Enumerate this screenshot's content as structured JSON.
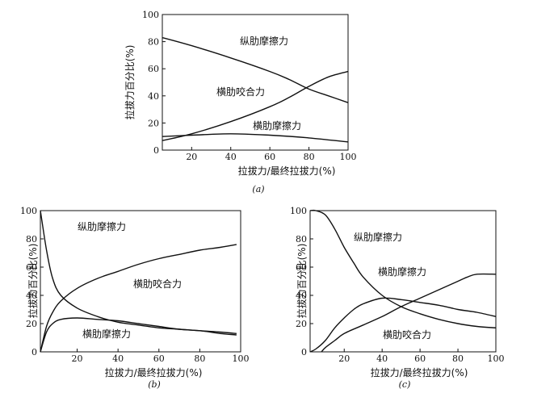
{
  "chart_data": [
    {
      "type": "line",
      "panel": "(a)",
      "xlabel": "拉拔力/最终拉拔力(%)",
      "ylabel": "拉拔力百分比(%)",
      "xlim": [
        5,
        100
      ],
      "ylim": [
        0,
        100
      ],
      "xticks": [
        "20",
        "40",
        "60",
        "80",
        "100"
      ],
      "yticks": [
        "0",
        "20",
        "40",
        "60",
        "80",
        "100"
      ],
      "grid": false,
      "series": [
        {
          "name": "纵肋摩擦力",
          "x": [
            5,
            20,
            40,
            60,
            70,
            80,
            90,
            100
          ],
          "y": [
            83,
            77,
            68,
            58,
            52,
            45,
            40,
            35
          ]
        },
        {
          "name": "横肋咬合力",
          "x": [
            5,
            20,
            40,
            60,
            70,
            80,
            90,
            100
          ],
          "y": [
            7,
            12,
            21,
            32,
            39,
            47,
            54,
            58
          ]
        },
        {
          "name": "横肋摩擦力",
          "x": [
            5,
            20,
            40,
            60,
            80,
            100
          ],
          "y": [
            10,
            11,
            12,
            11,
            9,
            6
          ]
        }
      ]
    },
    {
      "type": "line",
      "panel": "(b)",
      "xlabel": "拉拔力/最终拉拔力(%)",
      "ylabel": "拉拔力百分比(%)",
      "xlim": [
        2,
        100
      ],
      "ylim": [
        0,
        100
      ],
      "xticks": [
        "20",
        "40",
        "60",
        "80",
        "100"
      ],
      "yticks": [
        "0",
        "20",
        "40",
        "60",
        "80",
        "100"
      ],
      "grid": false,
      "series": [
        {
          "name": "纵肋摩擦力",
          "x": [
            2,
            5,
            8,
            12,
            20,
            30,
            40,
            50,
            60,
            70,
            80,
            90,
            98
          ],
          "y": [
            100,
            72,
            52,
            40,
            31,
            25,
            21,
            19,
            17,
            16,
            15,
            14,
            13
          ]
        },
        {
          "name": "横肋咬合力",
          "x": [
            2,
            5,
            8,
            12,
            20,
            30,
            40,
            50,
            60,
            70,
            80,
            90,
            98
          ],
          "y": [
            0,
            18,
            28,
            36,
            45,
            52,
            57,
            62,
            66,
            69,
            72,
            74,
            76
          ]
        },
        {
          "name": "横肋摩擦力",
          "x": [
            2,
            5,
            8,
            12,
            20,
            30,
            40,
            50,
            60,
            70,
            80,
            90,
            98
          ],
          "y": [
            0,
            14,
            20,
            23,
            24,
            23,
            22,
            20,
            18,
            16,
            15,
            13,
            12
          ]
        }
      ]
    },
    {
      "type": "line",
      "panel": "(c)",
      "xlabel": "拉拔力/最终拉拔力(%)",
      "ylabel": "拉拔力百分比(%)",
      "xlim": [
        2,
        100
      ],
      "ylim": [
        0,
        100
      ],
      "xticks": [
        "20",
        "40",
        "60",
        "80",
        "100"
      ],
      "yticks": [
        "0",
        "20",
        "40",
        "60",
        "80",
        "100"
      ],
      "grid": false,
      "series": [
        {
          "name": "纵肋摩擦力",
          "x": [
            2,
            5,
            10,
            15,
            20,
            25,
            30,
            40,
            50,
            60,
            70,
            80,
            90,
            100
          ],
          "y": [
            100,
            100,
            97,
            87,
            74,
            63,
            53,
            40,
            32,
            27,
            23,
            20,
            18,
            17
          ]
        },
        {
          "name": "横肋摩擦力",
          "x": [
            2,
            5,
            10,
            15,
            20,
            25,
            30,
            40,
            50,
            60,
            70,
            80,
            90,
            100
          ],
          "y": [
            0,
            2,
            8,
            17,
            24,
            30,
            34,
            38,
            37,
            35,
            33,
            30,
            28,
            25
          ]
        },
        {
          "name": "横肋咬合力",
          "x": [
            8,
            10,
            15,
            20,
            30,
            40,
            50,
            60,
            70,
            80,
            85,
            90,
            100
          ],
          "y": [
            0,
            3,
            8,
            13,
            19,
            25,
            32,
            38,
            44,
            50,
            53,
            55,
            55
          ]
        }
      ]
    }
  ]
}
